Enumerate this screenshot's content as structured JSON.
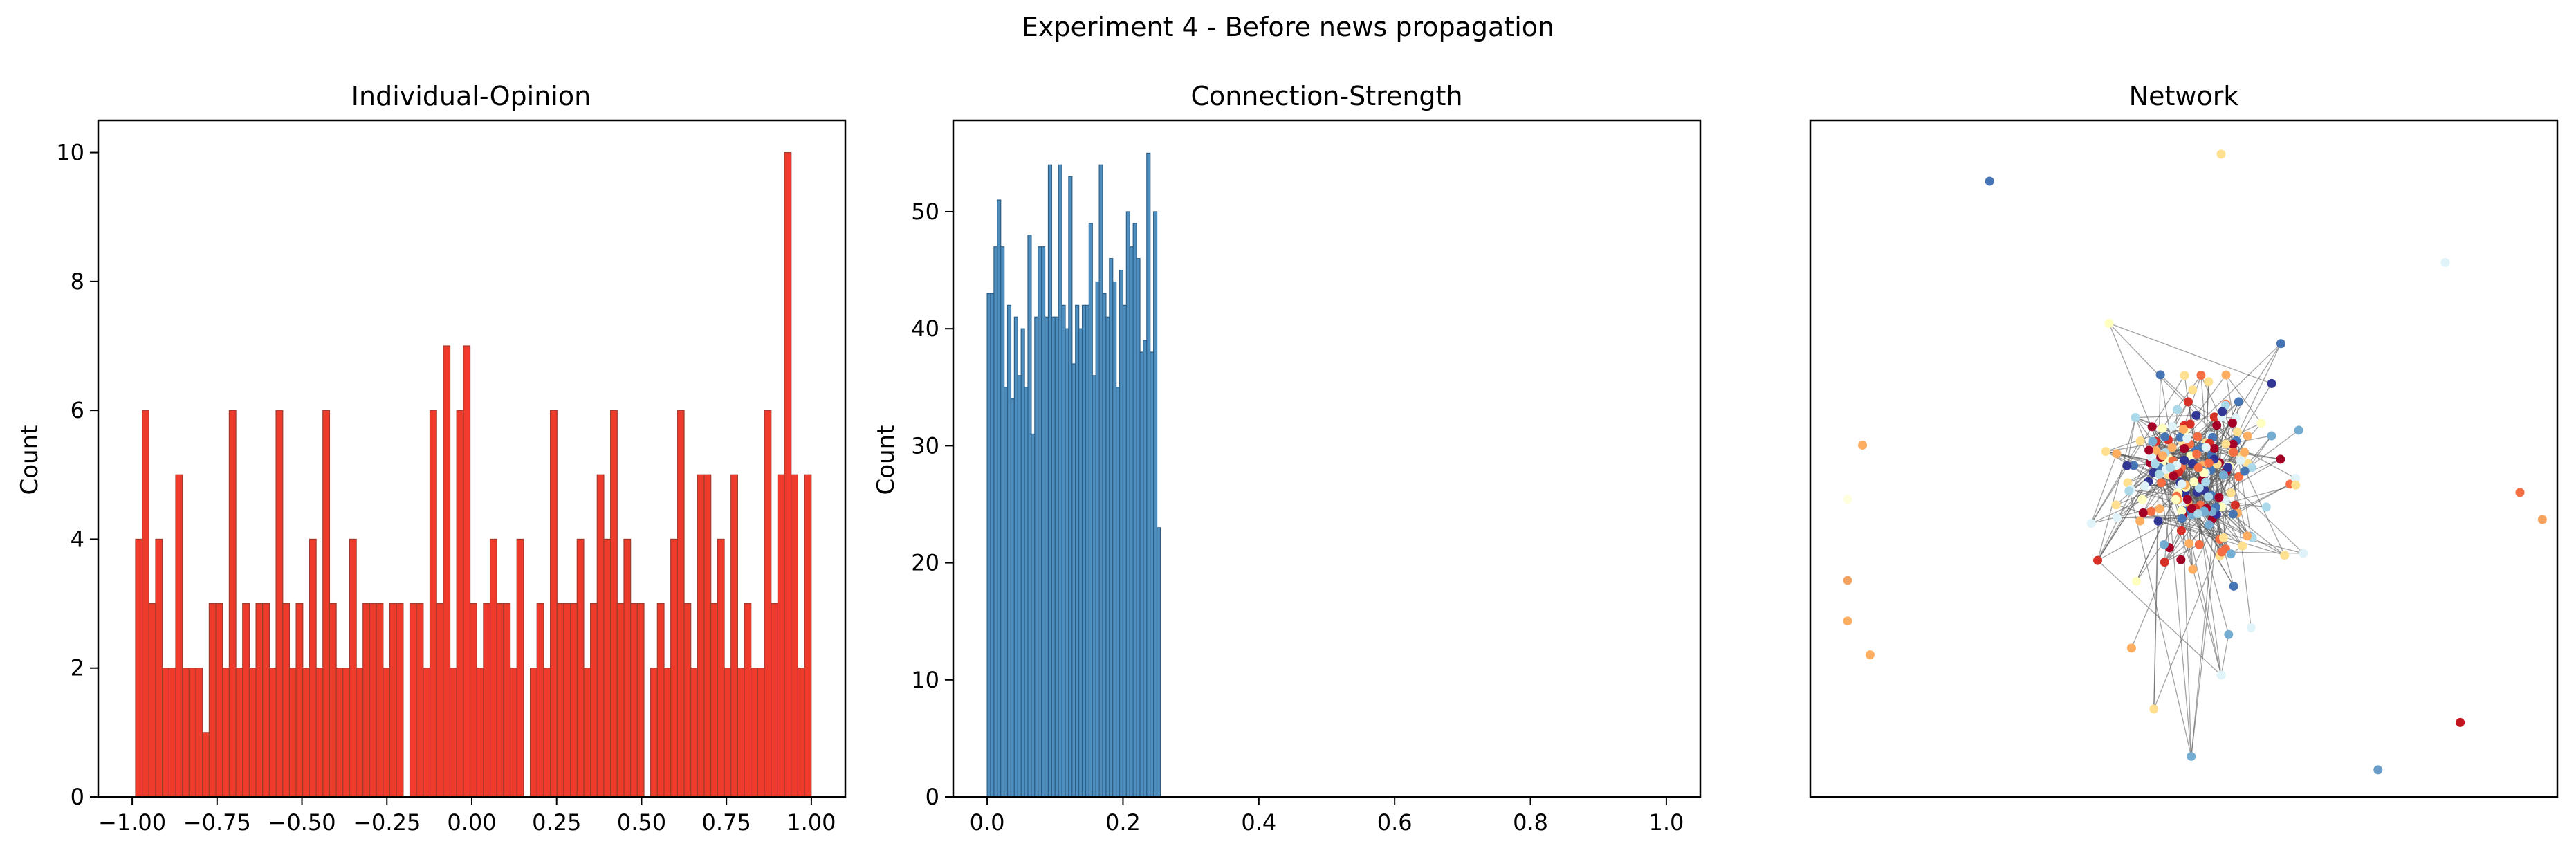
{
  "figure": {
    "suptitle": "Experiment 4 - Before news propagation"
  },
  "chart_data": [
    {
      "type": "bar",
      "title": "Individual-Opinion",
      "xlabel": "",
      "ylabel": "Count",
      "xlim": [
        -1.1,
        1.1
      ],
      "ylim": [
        0,
        10.5
      ],
      "xticks": [
        -1.0,
        -0.75,
        -0.5,
        -0.25,
        0.0,
        0.25,
        0.5,
        0.75,
        1.0
      ],
      "xtick_labels": [
        "−1.00",
        "−0.75",
        "−0.50",
        "−0.25",
        "0.00",
        "0.25",
        "0.50",
        "0.75",
        "1.00"
      ],
      "yticks": [
        0,
        2,
        4,
        6,
        8,
        10
      ],
      "ytick_labels": [
        "0",
        "2",
        "4",
        "6",
        "8",
        "10"
      ],
      "bin_start": -0.99,
      "bin_width": 0.0197,
      "fill": "#ef3b2c",
      "edge": "#a03a2e",
      "values": [
        4,
        6,
        3,
        4,
        2,
        2,
        5,
        2,
        2,
        2,
        1,
        3,
        3,
        2,
        6,
        2,
        3,
        2,
        3,
        3,
        2,
        6,
        3,
        2,
        3,
        2,
        4,
        2,
        6,
        3,
        2,
        2,
        4,
        2,
        3,
        3,
        3,
        2,
        3,
        3,
        0,
        3,
        3,
        2,
        6,
        3,
        7,
        2,
        6,
        7,
        3,
        2,
        3,
        4,
        3,
        3,
        2,
        4,
        0,
        2,
        3,
        2,
        6,
        3,
        3,
        3,
        4,
        2,
        3,
        5,
        4,
        6,
        3,
        4,
        3,
        3,
        0,
        2,
        3,
        2,
        4,
        6,
        3,
        2,
        5,
        5,
        3,
        4,
        2,
        5,
        2,
        3,
        2,
        2,
        6,
        3,
        5,
        10,
        5,
        2,
        5
      ]
    },
    {
      "type": "bar",
      "title": "Connection-Strength",
      "xlabel": "",
      "ylabel": "Count",
      "xlim": [
        -0.05,
        1.05
      ],
      "ylim": [
        0,
        57.8
      ],
      "xticks": [
        0.0,
        0.2,
        0.4,
        0.6,
        0.8,
        1.0
      ],
      "xtick_labels": [
        "0.0",
        "0.2",
        "0.4",
        "0.6",
        "0.8",
        "1.0"
      ],
      "yticks": [
        0,
        10,
        20,
        30,
        40,
        50
      ],
      "ytick_labels": [
        "0",
        "10",
        "20",
        "30",
        "40",
        "50"
      ],
      "bin_start": 0.0,
      "bin_width": 0.005,
      "fill": "#4f8fc0",
      "edge": "#2d5f86",
      "values": [
        43,
        43,
        47,
        51,
        47,
        35,
        42,
        34,
        41,
        36,
        40,
        35,
        48,
        31,
        41,
        47,
        47,
        41,
        54,
        41,
        41,
        54,
        42,
        40,
        53,
        37,
        42,
        40,
        42,
        42,
        49,
        36,
        44,
        54,
        43,
        41,
        46,
        44,
        35,
        45,
        42,
        50,
        47,
        49,
        46,
        38,
        39,
        55,
        38,
        50,
        23
      ]
    },
    {
      "type": "network",
      "title": "Network",
      "xlabel": "",
      "ylabel": "",
      "grid": false,
      "node_palette": [
        "#a50026",
        "#d73027",
        "#f46d43",
        "#fdae61",
        "#fee090",
        "#ffffbf",
        "#e0f3f8",
        "#abd9e9",
        "#74add1",
        "#4575b4",
        "#313695"
      ],
      "edge_color": "#555555",
      "isolated_nodes": [
        {
          "x": 0.05,
          "y": 0.68,
          "color": "#f4a460"
        },
        {
          "x": 0.05,
          "y": 0.74,
          "color": "#fdae61"
        },
        {
          "x": 0.08,
          "y": 0.79,
          "color": "#fdae61"
        },
        {
          "x": 0.07,
          "y": 0.48,
          "color": "#fdae61"
        },
        {
          "x": 0.24,
          "y": 0.09,
          "color": "#4575b4"
        },
        {
          "x": 0.55,
          "y": 0.05,
          "color": "#fee090"
        },
        {
          "x": 0.85,
          "y": 0.21,
          "color": "#e0f3f8"
        },
        {
          "x": 0.95,
          "y": 0.55,
          "color": "#f46d43"
        },
        {
          "x": 0.98,
          "y": 0.59,
          "color": "#f4a460"
        },
        {
          "x": 0.87,
          "y": 0.89,
          "color": "#c0141e"
        },
        {
          "x": 0.76,
          "y": 0.96,
          "color": "#6a9ec8"
        },
        {
          "x": 0.05,
          "y": 0.56,
          "color": "#ffffdd"
        }
      ]
    }
  ]
}
